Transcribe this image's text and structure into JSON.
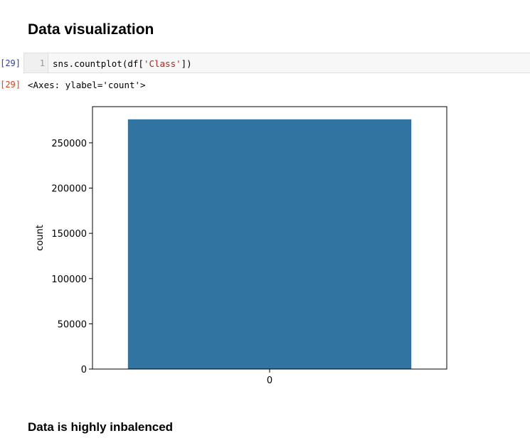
{
  "notebook": {
    "heading": "Data visualization",
    "cell": {
      "in_prompt": "[29]:",
      "out_prompt": "[29]:",
      "line_number": "1",
      "code_prefix": "sns.countplot(df[",
      "code_string": "'Class'",
      "code_suffix": "])",
      "output_text": "<Axes: ylabel='count'>"
    },
    "markdown_note": "Data is highly inbalenced"
  },
  "colors": {
    "bar": "#3274a1",
    "in_prompt": "#303f9f",
    "out_prompt": "#d84315"
  },
  "chart_data": {
    "type": "bar",
    "categories": [
      "0"
    ],
    "values": [
      276000
    ],
    "ylabel": "count",
    "xlabel": "",
    "ylim": [
      0,
      290000
    ],
    "yticks": [
      0,
      50000,
      100000,
      150000,
      200000,
      250000
    ],
    "ytick_labels": [
      "0",
      "50000",
      "100000",
      "150000",
      "200000",
      "250000"
    ],
    "grid": false,
    "color": "#3274a1"
  }
}
